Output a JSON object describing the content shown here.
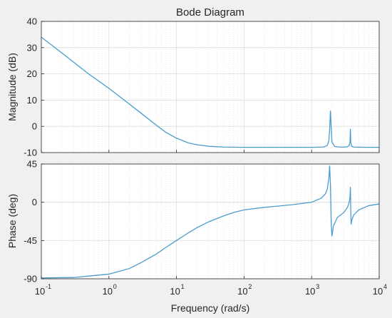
{
  "colors": {
    "line": "#4a9ccf",
    "axes_bg": "#ffffff",
    "figure_bg": "#f0f0f0",
    "grid": "#dcdcdc",
    "axis": "#262626"
  },
  "chart_data": [
    {
      "type": "line",
      "title": "Bode Diagram",
      "ylabel": "Magnitude (dB)",
      "xscale": "log",
      "xlim": [
        0.1,
        10000
      ],
      "ylim": [
        -10,
        40
      ],
      "yticks": [
        "-10",
        "0",
        "10",
        "20",
        "30",
        "40"
      ],
      "grid": true,
      "series": [
        {
          "x": [
            0.1,
            0.2,
            0.5,
            1,
            2,
            3,
            5,
            7,
            10,
            15,
            20,
            30,
            50,
            100,
            200,
            500,
            1000,
            1500,
            1700,
            1800,
            1850,
            1900,
            1950,
            2000,
            2200,
            2600,
            3000,
            3400,
            3600,
            3700,
            3750,
            3800,
            3900,
            4200,
            5000,
            7000,
            10000
          ],
          "y": [
            34,
            28,
            20,
            14.5,
            8.5,
            5,
            0.5,
            -2.3,
            -4.5,
            -6.3,
            -7,
            -7.6,
            -7.9,
            -8.0,
            -8.0,
            -8.0,
            -8.0,
            -7.9,
            -7.3,
            -5.5,
            -1,
            6,
            -0.5,
            -6,
            -7.7,
            -7.9,
            -7.9,
            -7.8,
            -7.3,
            -6,
            -1,
            -6,
            -7.6,
            -7.9,
            -7.95,
            -8.0,
            -8.0
          ]
        }
      ]
    },
    {
      "type": "line",
      "xlabel": "Frequency  (rad/s)",
      "ylabel": "Phase (deg)",
      "xscale": "log",
      "xlim": [
        0.1,
        10000
      ],
      "ylim": [
        -90,
        45
      ],
      "yticks": [
        "-90",
        "-45",
        "0",
        "45"
      ],
      "xticks": [
        "10",
        "10",
        "10",
        "10",
        "10",
        "10"
      ],
      "xtick_exponents": [
        "-1",
        "0",
        "1",
        "2",
        "3",
        "4"
      ],
      "grid": true,
      "series": [
        {
          "x": [
            0.1,
            0.3,
            1,
            2,
            3,
            5,
            7,
            10,
            15,
            20,
            30,
            50,
            70,
            100,
            200,
            500,
            1000,
            1400,
            1600,
            1700,
            1800,
            1850,
            1900,
            1950,
            2000,
            2100,
            2400,
            3000,
            3400,
            3600,
            3700,
            3750,
            3800,
            3850,
            3900,
            4200,
            5000,
            7000,
            10000
          ],
          "y": [
            -89,
            -88.5,
            -84.5,
            -78,
            -71,
            -61,
            -53,
            -45,
            -36,
            -30,
            -23,
            -16,
            -12,
            -9,
            -6,
            -3,
            0,
            5,
            10,
            15,
            28,
            43,
            20,
            -25,
            -40,
            -28,
            -18,
            -12,
            -6,
            0,
            6,
            18,
            -10,
            -26,
            -22,
            -15,
            -9,
            -4,
            -2
          ]
        }
      ]
    }
  ]
}
